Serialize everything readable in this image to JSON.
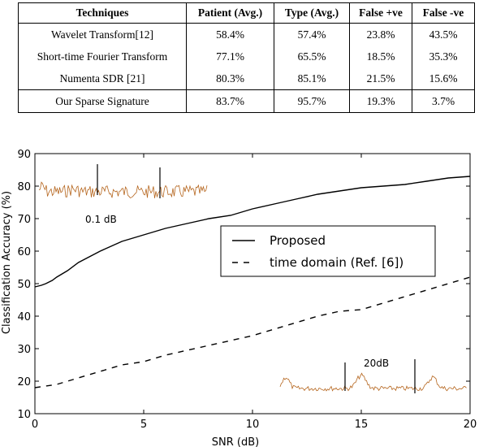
{
  "table": {
    "headers": [
      "Techniques",
      "Patient (Avg.)",
      "Type (Avg.)",
      "False +ve",
      "False -ve"
    ],
    "rows": [
      [
        "Wavelet Transform[12]",
        "58.4%",
        "57.4%",
        "23.8%",
        "43.5%"
      ],
      [
        "Short-time Fourier Transform",
        "77.1%",
        "65.5%",
        "18.5%",
        "35.3%"
      ],
      [
        "Numenta SDR [21]",
        "80.3%",
        "85.1%",
        "21.5%",
        "15.6%"
      ],
      [
        "Our Sparse Signature",
        "83.7%",
        "95.7%",
        "19.3%",
        "3.7%"
      ]
    ]
  },
  "chart_data": {
    "type": "line",
    "xlabel": "SNR (dB)",
    "ylabel": "Classification Accuracy (%)",
    "xlim": [
      0,
      20
    ],
    "ylim": [
      10,
      90
    ],
    "xticks": [
      "0",
      "5",
      "10",
      "15",
      "20"
    ],
    "yticks": [
      "10",
      "20",
      "30",
      "40",
      "50",
      "60",
      "70",
      "80",
      "90"
    ],
    "legend_placement": "center-right",
    "series": [
      {
        "name": "Proposed",
        "style": "solid",
        "x": [
          0,
          0.3,
          0.5,
          0.8,
          1,
          1.5,
          2,
          3,
          4,
          5,
          6,
          7,
          8,
          9,
          10,
          11,
          12,
          13,
          14,
          15,
          16,
          17,
          18,
          19,
          20
        ],
        "y": [
          49,
          49.5,
          50,
          51,
          52,
          54,
          56.5,
          60,
          63,
          65,
          67,
          68.5,
          70,
          71,
          73,
          74.5,
          76,
          77.5,
          78.5,
          79.5,
          80,
          80.5,
          81.5,
          82.5,
          83
        ]
      },
      {
        "name": "time domain (Ref. [6])",
        "style": "dashed",
        "x": [
          0,
          1,
          2,
          3,
          4,
          5,
          6,
          7,
          8,
          9,
          10,
          11,
          12,
          13,
          14,
          15,
          16,
          17,
          18,
          19,
          20
        ],
        "y": [
          18,
          19,
          21,
          23,
          25,
          26,
          28,
          29.5,
          31,
          32.5,
          34,
          36,
          38,
          40,
          41.5,
          42,
          44,
          46,
          48,
          50,
          52
        ]
      }
    ],
    "annotations": [
      "0.1 dB",
      "20dB"
    ],
    "colors": {
      "line": "#000000",
      "inset_signal": "#b5651d"
    }
  }
}
